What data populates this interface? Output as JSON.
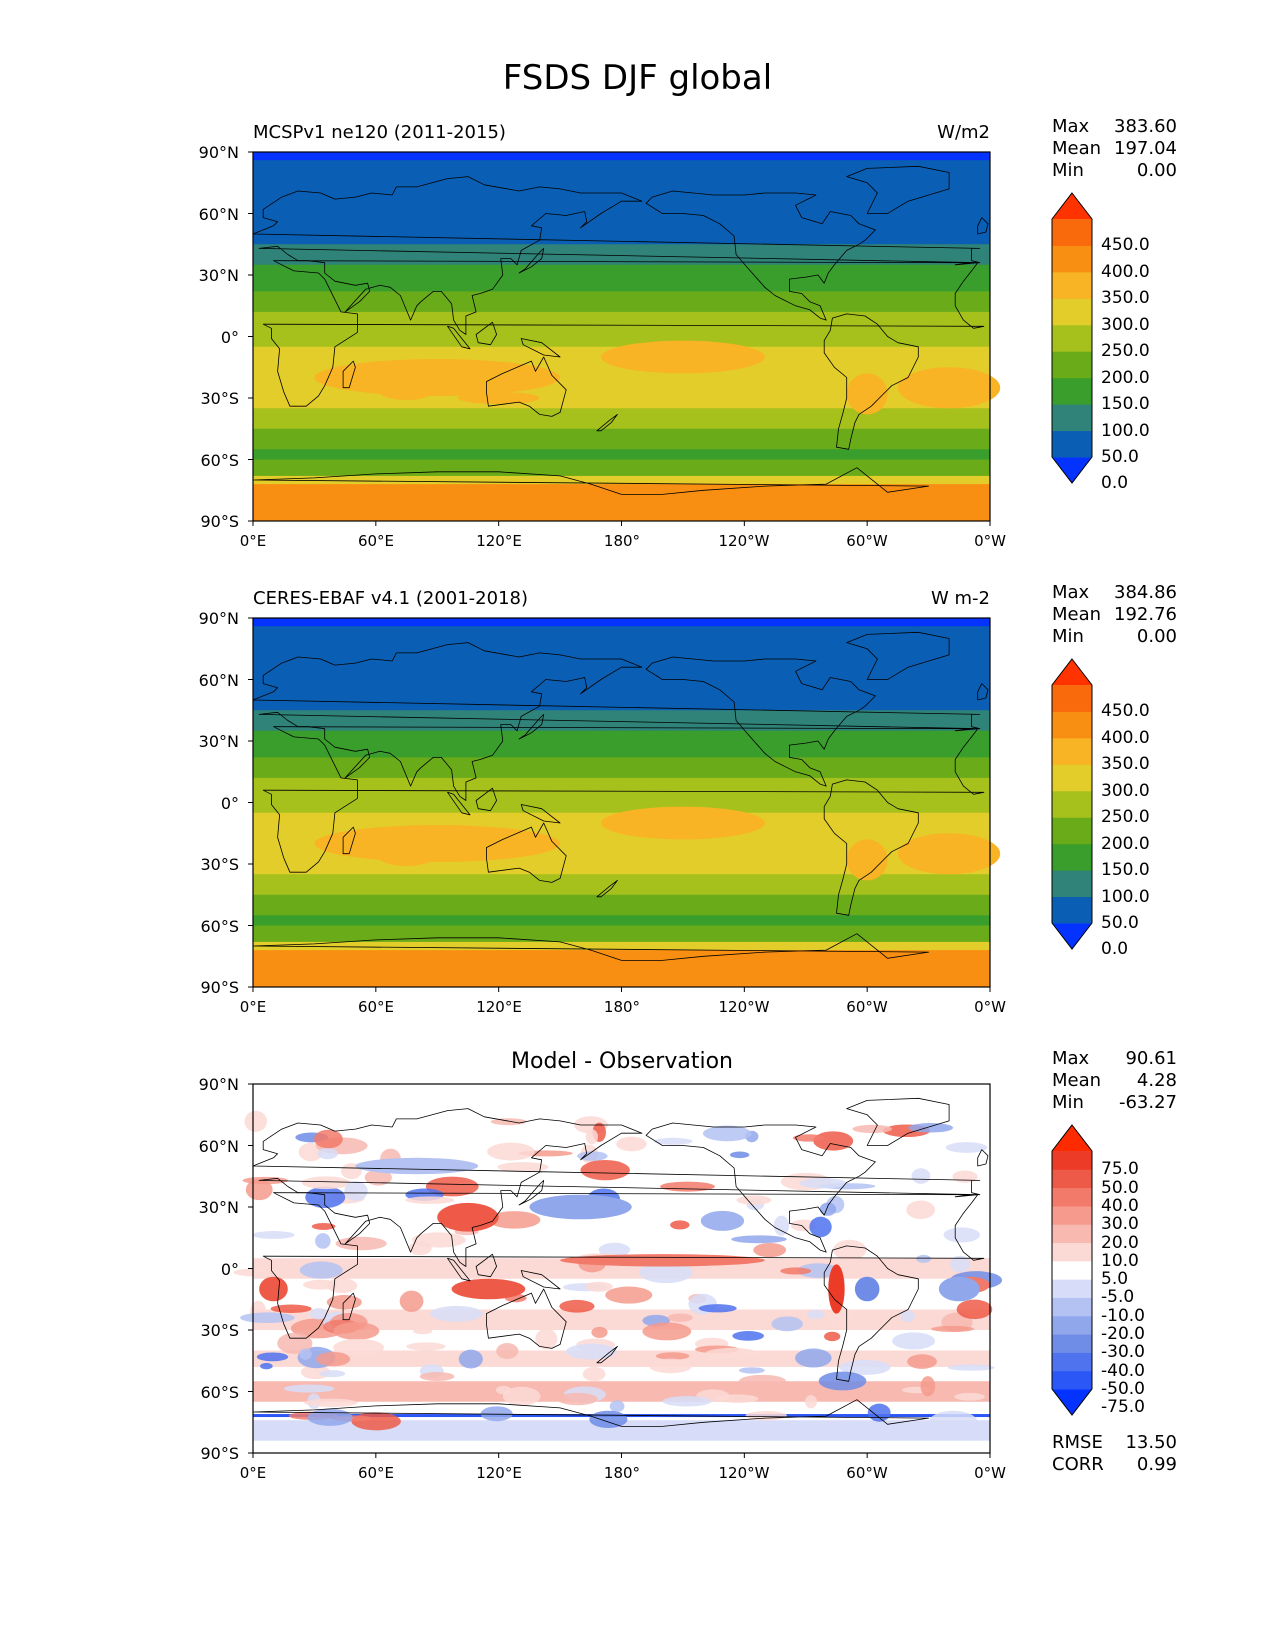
{
  "title": "FSDS DJF global",
  "lat_ticks": [
    "90°N",
    "60°N",
    "30°N",
    "0°",
    "30°S",
    "60°S",
    "90°S"
  ],
  "lon_ticks": [
    "0°E",
    "60°E",
    "120°E",
    "180°",
    "120°W",
    "60°W",
    "0°W"
  ],
  "panels": [
    {
      "left_title": "MCSPv1 ne120 (2011-2015)",
      "right_title": "W/m2",
      "center_title": "",
      "stats": [
        {
          "label": "Max",
          "value": "383.60"
        },
        {
          "label": "Mean",
          "value": "197.04"
        },
        {
          "label": "Min",
          "value": "0.00"
        }
      ],
      "colorbar": {
        "labels": [
          "450.0",
          "400.0",
          "350.0",
          "300.0",
          "250.0",
          "200.0",
          "150.0",
          "100.0",
          "50.0",
          "0.0"
        ],
        "colors": [
          "#0433ff",
          "#0a5fb4",
          "#2f8378",
          "#3a9e2c",
          "#6aab1a",
          "#a6c01c",
          "#e3cd2b",
          "#f8b424",
          "#f98f12",
          "#f86a0c",
          "#ff3300"
        ]
      },
      "map_palette": "fsds"
    },
    {
      "left_title": "CERES-EBAF v4.1 (2001-2018)",
      "right_title": "W m-2",
      "center_title": "",
      "stats": [
        {
          "label": "Max",
          "value": "384.86"
        },
        {
          "label": "Mean",
          "value": "192.76"
        },
        {
          "label": "Min",
          "value": "0.00"
        }
      ],
      "colorbar": {
        "labels": [
          "450.0",
          "400.0",
          "350.0",
          "300.0",
          "250.0",
          "200.0",
          "150.0",
          "100.0",
          "50.0",
          "0.0"
        ],
        "colors": [
          "#0433ff",
          "#0a5fb4",
          "#2f8378",
          "#3a9e2c",
          "#6aab1a",
          "#a6c01c",
          "#e3cd2b",
          "#f8b424",
          "#f98f12",
          "#f86a0c",
          "#ff3300"
        ]
      },
      "map_palette": "fsds"
    },
    {
      "left_title": "",
      "right_title": "",
      "center_title": "Model - Observation",
      "stats": [
        {
          "label": "Max",
          "value": "90.61"
        },
        {
          "label": "Mean",
          "value": "4.28"
        },
        {
          "label": "Min",
          "value": "-63.27"
        }
      ],
      "colorbar": {
        "labels": [
          "75.0",
          "50.0",
          "40.0",
          "30.0",
          "20.0",
          "10.0",
          "5.0",
          "-5.0",
          "-10.0",
          "-20.0",
          "-30.0",
          "-40.0",
          "-50.0",
          "-75.0"
        ],
        "colors": [
          "#0433ff",
          "#2b57f7",
          "#4f72ee",
          "#6f8ce6",
          "#90a7ec",
          "#b3c2f2",
          "#d7ddf8",
          "#ffffff",
          "#fbd9d5",
          "#f7b9b0",
          "#f59a8c",
          "#f27a6a",
          "#ee5a48",
          "#ec3c28",
          "#ff2b00"
        ]
      },
      "extra_stats": [
        {
          "label": "RMSE",
          "value": "13.50"
        },
        {
          "label": "CORR",
          "value": "0.99"
        }
      ],
      "map_palette": "diff"
    }
  ]
}
